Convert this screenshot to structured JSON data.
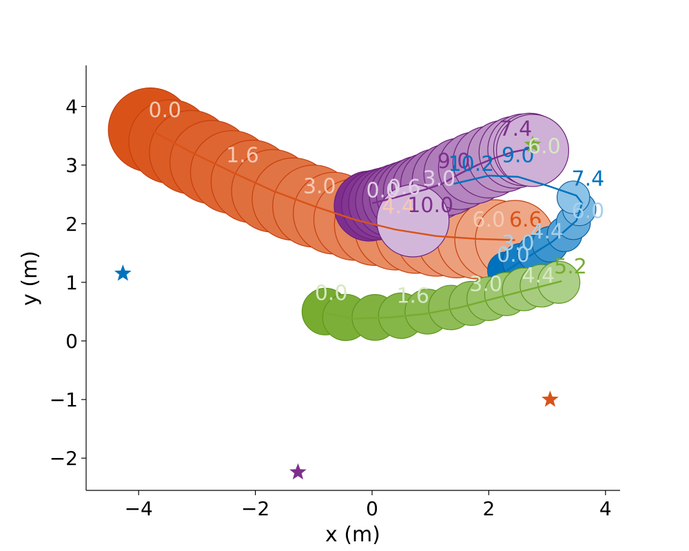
{
  "chart_data": {
    "type": "scatter",
    "xlabel": "x (m)",
    "ylabel": "y (m)",
    "xlim": [
      -4.9,
      4.25
    ],
    "ylim": [
      -2.55,
      4.7
    ],
    "xticks": [
      -4,
      -2,
      0,
      2,
      4
    ],
    "yticks": [
      -2,
      -1,
      0,
      1,
      2,
      3,
      4
    ],
    "xtick_labels": [
      "−4",
      "−2",
      "0",
      "2",
      "4"
    ],
    "ytick_labels": [
      "−2",
      "−1",
      "0",
      "1",
      "2",
      "3",
      "4"
    ],
    "grid": false,
    "agents": [
      {
        "color": "#d95319",
        "edge": "#c43e0c",
        "light": "#f2b79c",
        "radius_m": 0.72,
        "radius_end_m": 0.68,
        "goal": [
          3.05,
          -1.0
        ],
        "disc_x": [
          -3.8,
          -3.45,
          -3.1,
          -2.75,
          -2.4,
          -2.05,
          -1.7,
          -1.35,
          -1.0,
          -0.65,
          -0.3,
          0.05,
          0.4,
          0.75,
          1.1,
          1.45,
          1.8,
          2.1,
          2.45
        ],
        "disc_y": [
          3.6,
          3.4,
          3.22,
          3.05,
          2.88,
          2.72,
          2.56,
          2.42,
          2.3,
          2.18,
          2.07,
          1.98,
          1.9,
          1.84,
          1.79,
          1.76,
          1.74,
          1.73,
          1.72
        ],
        "line_x": [
          -3.8,
          -3.1,
          -2.4,
          -1.7,
          -1.0,
          -0.3,
          0.4,
          1.1,
          1.8,
          2.45
        ],
        "line_y": [
          3.6,
          3.22,
          2.88,
          2.56,
          2.3,
          2.07,
          1.9,
          1.79,
          1.74,
          1.72
        ],
        "time_labels": [
          {
            "text": "0.0",
            "x": -3.55,
            "y": 3.82,
            "color": "#f6c9b3"
          },
          {
            "text": "1.6",
            "x": -2.22,
            "y": 3.05,
            "color": "#f6c9b3"
          },
          {
            "text": "3.0",
            "x": -0.9,
            "y": 2.52,
            "color": "#f6c9b3"
          },
          {
            "text": "4.4",
            "x": 0.45,
            "y": 2.18,
            "color": "#f6c9b3"
          },
          {
            "text": "6.0",
            "x": 2.0,
            "y": 1.95,
            "color": "#f6c9b3"
          },
          {
            "text": "6.6",
            "x": 2.63,
            "y": 1.95,
            "color": "#d95319"
          }
        ]
      },
      {
        "color": "#7e2f8e",
        "edge": "#6a1f7a",
        "light": "#e2cfe8",
        "radius_m": 0.6,
        "radius_end_m": 0.62,
        "goal": [
          -1.27,
          -2.24
        ],
        "disc_x": [
          -0.05,
          0.08,
          0.2,
          0.32,
          0.44,
          0.56,
          0.68,
          0.8,
          0.95,
          1.1,
          1.3,
          1.5,
          1.75,
          2.0,
          2.25,
          2.45,
          2.6,
          2.7,
          2.75,
          0.7
        ],
        "disc_y": [
          2.3,
          2.32,
          2.35,
          2.38,
          2.42,
          2.46,
          2.5,
          2.55,
          2.6,
          2.67,
          2.75,
          2.85,
          2.95,
          3.05,
          3.15,
          3.22,
          3.26,
          3.27,
          3.25,
          2.05
        ],
        "line_x": [
          0.0,
          0.3,
          0.6,
          0.9,
          1.2,
          1.5,
          1.8,
          2.1,
          2.4,
          2.7
        ],
        "line_y": [
          2.35,
          2.42,
          2.5,
          2.58,
          2.68,
          2.85,
          3.0,
          3.12,
          3.22,
          3.28
        ],
        "time_labels": [
          {
            "text": "0.0",
            "x": 0.18,
            "y": 2.45,
            "color": "#e2cfe8"
          },
          {
            "text": "0.6",
            "x": 0.55,
            "y": 2.5,
            "color": "#e2cfe8"
          },
          {
            "text": "3.0",
            "x": 1.15,
            "y": 2.65,
            "color": "#e2cfe8"
          },
          {
            "text": "9.0",
            "x": 1.4,
            "y": 2.95,
            "color": "#7e2f8e"
          },
          {
            "text": "10.0",
            "x": 1.0,
            "y": 2.2,
            "color": "#7e2f8e"
          },
          {
            "text": "7.4",
            "x": 2.46,
            "y": 3.5,
            "color": "#7e2f8e"
          }
        ]
      },
      {
        "color": "#0072bd",
        "edge": "#0a5f9e",
        "light": "#a6d1ee",
        "radius_m": 0.32,
        "radius_end_m": 0.28,
        "goal": [
          -4.27,
          1.15
        ],
        "disc_x": [
          2.3,
          2.55,
          2.8,
          3.05,
          3.3,
          3.45,
          3.55,
          3.45
        ],
        "disc_y": [
          1.2,
          1.35,
          1.5,
          1.65,
          1.82,
          2.02,
          2.25,
          2.45
        ],
        "line_x": [
          2.3,
          2.7,
          3.1,
          3.5,
          3.6,
          3.5,
          3.0,
          2.5,
          2.0,
          1.4
        ],
        "line_y": [
          1.2,
          1.45,
          1.7,
          2.05,
          2.35,
          2.48,
          2.65,
          2.8,
          2.82,
          2.68
        ],
        "time_labels": [
          {
            "text": "0.0",
            "x": 2.42,
            "y": 1.35,
            "color": "#a6d1ee"
          },
          {
            "text": "3.0",
            "x": 2.5,
            "y": 1.55,
            "color": "#a6d1ee"
          },
          {
            "text": "4.4",
            "x": 3.0,
            "y": 1.75,
            "color": "#a6d1ee"
          },
          {
            "text": "6.0",
            "x": 3.7,
            "y": 2.1,
            "color": "#a6d1ee"
          },
          {
            "text": "7.4",
            "x": 3.7,
            "y": 2.65,
            "color": "#0072bd"
          },
          {
            "text": "9.0",
            "x": 2.5,
            "y": 3.05,
            "color": "#0072bd"
          },
          {
            "text": "10.2",
            "x": 1.7,
            "y": 2.9,
            "color": "#0072bd"
          }
        ]
      },
      {
        "color": "#77ac30",
        "edge": "#5e9420",
        "light": "#b5d696",
        "radius_m": 0.4,
        "radius_end_m": 0.36,
        "goal": [
          2.75,
          3.35
        ],
        "disc_x": [
          -0.8,
          -0.45,
          0.05,
          0.5,
          0.95,
          1.35,
          1.7,
          2.0,
          2.3,
          2.6,
          2.9,
          3.2
        ],
        "disc_y": [
          0.5,
          0.4,
          0.4,
          0.43,
          0.5,
          0.57,
          0.64,
          0.72,
          0.8,
          0.88,
          0.94,
          1.0
        ],
        "line_x": [
          -0.8,
          -0.3,
          0.3,
          0.9,
          1.5,
          2.0,
          2.5,
          2.9,
          3.25
        ],
        "line_y": [
          0.47,
          0.38,
          0.4,
          0.46,
          0.57,
          0.7,
          0.83,
          0.93,
          1.02
        ],
        "time_labels": [
          {
            "text": "0.0",
            "x": -0.7,
            "y": 0.7,
            "color": "#d6e8c4"
          },
          {
            "text": "1.6",
            "x": 0.7,
            "y": 0.65,
            "color": "#d6e8c4"
          },
          {
            "text": "3.0",
            "x": 1.95,
            "y": 0.85,
            "color": "#d6e8c4"
          },
          {
            "text": "4.4",
            "x": 2.85,
            "y": 1.0,
            "color": "#d6e8c4"
          },
          {
            "text": "5.2",
            "x": 3.4,
            "y": 1.15,
            "color": "#77ac30"
          },
          {
            "text": "6.0",
            "x": 2.95,
            "y": 3.2,
            "color": "#d6e8c4"
          }
        ]
      }
    ]
  }
}
